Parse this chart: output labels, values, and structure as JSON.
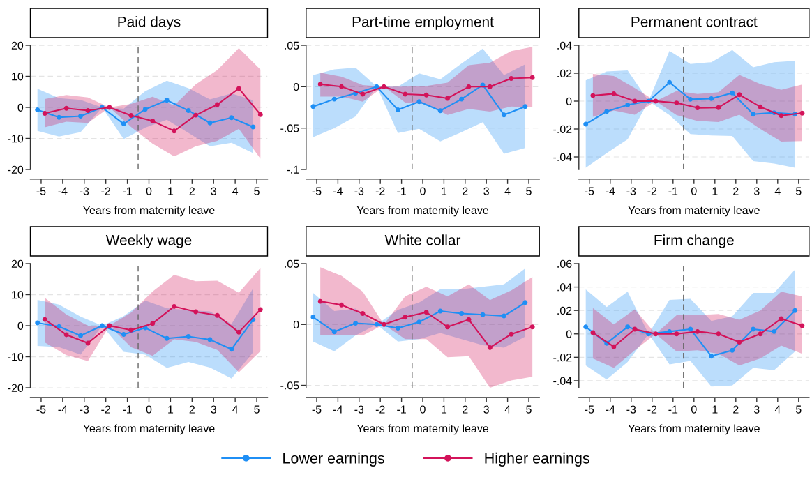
{
  "chart_data": [
    {
      "type": "line",
      "title": "Paid days",
      "xlabel": "Years from maternity leave",
      "xlim": [
        -5.5,
        5.5
      ],
      "xticks": [
        -5,
        -4,
        -3,
        -2,
        -1,
        0,
        1,
        2,
        3,
        4,
        5
      ],
      "ylim": [
        -20,
        20
      ],
      "yticks": [
        20,
        10,
        0,
        -10,
        -20
      ],
      "grid": "y",
      "marker": "circle",
      "line_style": "solid",
      "legend": "bottom",
      "ref_lines": [
        {
          "axis": "x",
          "value": -0.5,
          "color": "#666666",
          "line_style": "dashed"
        }
      ],
      "series": [
        {
          "name": "Lower earnings",
          "color": "#1f8ff5",
          "x": [
            -5.17,
            -4.17,
            -3.17,
            -2.17,
            -1.17,
            -0.17,
            0.83,
            1.83,
            2.83,
            3.83,
            4.83
          ],
          "values": [
            -0.8,
            -3.2,
            -2.8,
            0,
            -5.3,
            -0.6,
            2.3,
            -1.0,
            -5.0,
            -3.3,
            -6.3
          ],
          "lower": [
            -7.6,
            -9.4,
            -8.0,
            0,
            -10.2,
            -6.5,
            -4.0,
            -8.2,
            -12.5,
            -11.4,
            -14.7
          ],
          "upper": [
            6.0,
            3.0,
            2.4,
            0,
            -0.4,
            5.2,
            8.6,
            6.2,
            2.6,
            4.5,
            2.3
          ]
        },
        {
          "name": "Higher earnings",
          "color": "#d3135a",
          "x": [
            -4.83,
            -3.83,
            -2.83,
            -1.83,
            -0.83,
            0.17,
            1.17,
            2.17,
            3.17,
            4.17,
            5.17
          ],
          "values": [
            -1.9,
            -0.3,
            -1.0,
            0,
            -2.6,
            -4.4,
            -7.6,
            -2.5,
            0.9,
            6.1,
            -2.3
          ],
          "lower": [
            -6.4,
            -4.6,
            -5.0,
            0,
            -6.3,
            -11.7,
            -15.8,
            -12.5,
            -10.8,
            -6.9,
            -16.5
          ],
          "upper": [
            2.7,
            4.0,
            3.2,
            0,
            1.1,
            3.4,
            0.6,
            7.4,
            12.0,
            19.1,
            12.2
          ]
        }
      ]
    },
    {
      "type": "line",
      "title": "Part-time employment",
      "xlabel": "Years from maternity leave",
      "xlim": [
        -5.5,
        5.5
      ],
      "xticks": [
        -5,
        -4,
        -3,
        -2,
        -1,
        0,
        1,
        2,
        3,
        4,
        5
      ],
      "ylim": [
        -0.1,
        0.05
      ],
      "yticks": [
        {
          "value": 0.05,
          "label": ".05"
        },
        0,
        {
          "value": -0.05,
          "label": "-.05"
        },
        {
          "value": -0.1,
          "label": "-.1"
        }
      ],
      "grid": "y",
      "marker": "circle",
      "line_style": "solid",
      "ref_lines": [
        {
          "axis": "x",
          "value": -0.5,
          "color": "#666666",
          "line_style": "dashed"
        }
      ],
      "series": [
        {
          "name": "Lower earnings",
          "color": "#1f8ff5",
          "x": [
            -5.17,
            -4.17,
            -3.17,
            -2.17,
            -1.17,
            -0.17,
            0.83,
            1.83,
            2.83,
            3.83,
            4.83
          ],
          "values": [
            -0.024,
            -0.015,
            -0.008,
            0,
            -0.028,
            -0.018,
            -0.029,
            -0.015,
            0.002,
            -0.034,
            -0.024
          ],
          "lower": [
            -0.061,
            -0.05,
            -0.036,
            0,
            -0.056,
            -0.051,
            -0.066,
            -0.055,
            -0.043,
            -0.081,
            -0.074
          ],
          "upper": [
            0.014,
            0.021,
            0.023,
            0,
            0,
            0.016,
            0.009,
            0.028,
            0.046,
            0.014,
            0.027
          ]
        },
        {
          "name": "Higher earnings",
          "color": "#d3135a",
          "x": [
            -4.83,
            -3.83,
            -2.83,
            -1.83,
            -0.83,
            0.17,
            1.17,
            2.17,
            3.17,
            4.17,
            5.17
          ],
          "values": [
            0.003,
            0,
            -0.009,
            0,
            -0.009,
            -0.01,
            -0.014,
            0,
            0,
            0.01,
            0.011
          ],
          "lower": [
            -0.012,
            -0.012,
            -0.018,
            0,
            -0.019,
            -0.021,
            -0.034,
            -0.027,
            -0.03,
            -0.024,
            -0.025
          ],
          "upper": [
            0.017,
            0.012,
            0.002,
            0,
            0,
            0.001,
            0.005,
            0.026,
            0.029,
            0.043,
            0.048
          ]
        }
      ]
    },
    {
      "type": "line",
      "title": "Permanent contract",
      "xlabel": "Years from maternity leave",
      "xlim": [
        -5.5,
        5.5
      ],
      "xticks": [
        -5,
        -4,
        -3,
        -2,
        -1,
        0,
        1,
        2,
        3,
        4,
        5
      ],
      "ylim": [
        -0.049,
        0.04
      ],
      "yticks": [
        {
          "value": 0.04,
          "label": ".04"
        },
        {
          "value": 0.02,
          "label": ".02"
        },
        0,
        {
          "value": -0.02,
          "label": "-.02"
        },
        {
          "value": -0.04,
          "label": "-.04"
        }
      ],
      "grid": "y",
      "marker": "circle",
      "line_style": "solid",
      "ref_lines": [
        {
          "axis": "x",
          "value": -0.5,
          "color": "#666666",
          "line_style": "dashed"
        }
      ],
      "series": [
        {
          "name": "Lower earnings",
          "color": "#1f8ff5",
          "x": [
            -5.17,
            -4.17,
            -3.17,
            -2.17,
            -1.17,
            -0.17,
            0.83,
            1.83,
            2.83,
            3.83,
            4.83
          ],
          "values": [
            -0.0165,
            -0.0074,
            -0.0028,
            0,
            0.0134,
            0.0013,
            0.0018,
            0.0059,
            -0.0094,
            -0.0083,
            -0.0094
          ],
          "lower": [
            -0.0477,
            -0.0373,
            -0.0274,
            0,
            -0.01,
            -0.0236,
            -0.0246,
            -0.025,
            -0.043,
            -0.0447,
            -0.0477
          ],
          "upper": [
            0.0149,
            0.0213,
            0.022,
            0,
            0.036,
            0.0266,
            0.0279,
            0.0366,
            0.0243,
            0.0279,
            0.0289
          ]
        },
        {
          "name": "Higher earnings",
          "color": "#d3135a",
          "x": [
            -4.83,
            -3.83,
            -2.83,
            -1.83,
            -0.83,
            0.17,
            1.17,
            2.17,
            3.17,
            4.17,
            5.17
          ],
          "values": [
            0.004,
            0.0053,
            0,
            0,
            -0.0013,
            -0.0048,
            -0.0046,
            0.0046,
            -0.0041,
            -0.0104,
            -0.0086
          ],
          "lower": [
            -0.0112,
            -0.0068,
            -0.0097,
            0,
            -0.01,
            -0.0142,
            -0.015,
            -0.0097,
            -0.02,
            -0.029,
            -0.0286
          ],
          "upper": [
            0.0195,
            0.018,
            0.0094,
            0,
            0.0073,
            0.0051,
            0.0064,
            0.0188,
            0.0122,
            0.0081,
            0.0119
          ]
        }
      ]
    },
    {
      "type": "line",
      "title": "Weekly wage",
      "xlabel": "Years from maternity leave",
      "xlim": [
        -5.5,
        5.5
      ],
      "xticks": [
        -5,
        -4,
        -3,
        -2,
        -1,
        0,
        1,
        2,
        3,
        4,
        5
      ],
      "ylim": [
        -20,
        20
      ],
      "yticks": [
        20,
        10,
        0,
        -10,
        -20
      ],
      "grid": "y",
      "marker": "circle",
      "line_style": "solid",
      "ref_lines": [
        {
          "axis": "x",
          "value": -0.5,
          "color": "#666666",
          "line_style": "dashed"
        }
      ],
      "series": [
        {
          "name": "Lower earnings",
          "color": "#1f8ff5",
          "x": [
            -5.17,
            -4.17,
            -3.17,
            -2.17,
            -1.17,
            -0.17,
            0.83,
            1.83,
            2.83,
            3.83,
            4.83
          ],
          "values": [
            0.9,
            -0.3,
            -3.2,
            0,
            -2.8,
            -0.7,
            -4.1,
            -3.5,
            -4.5,
            -7.6,
            1.9
          ],
          "lower": [
            -6.5,
            -6.9,
            -9.3,
            0,
            -8.4,
            -9.3,
            -13.6,
            -11.7,
            -13.5,
            -17.0,
            -8.6
          ],
          "upper": [
            8.3,
            6.8,
            2.9,
            0,
            3.1,
            8.1,
            5.6,
            5.0,
            4.6,
            0.5,
            12.0
          ]
        },
        {
          "name": "Higher earnings",
          "color": "#d3135a",
          "x": [
            -4.83,
            -3.83,
            -2.83,
            -1.83,
            -0.83,
            0.17,
            1.17,
            2.17,
            3.17,
            4.17,
            5.17
          ],
          "values": [
            2.0,
            -2.9,
            -5.6,
            0,
            -1.4,
            0.7,
            6.2,
            4.5,
            3.3,
            -2.1,
            5.2
          ],
          "lower": [
            -5.4,
            -9.5,
            -11.4,
            0,
            -6.9,
            -9.7,
            -4.4,
            -5.2,
            -7.8,
            -15.0,
            -8.2
          ],
          "upper": [
            9.0,
            3.6,
            0,
            0,
            4.2,
            11.0,
            16.4,
            14.3,
            14.5,
            10.6,
            18.6
          ]
        }
      ]
    },
    {
      "type": "line",
      "title": "White collar",
      "xlabel": "Years from maternity leave",
      "xlim": [
        -5.5,
        5.5
      ],
      "xticks": [
        -5,
        -4,
        -3,
        -2,
        -1,
        0,
        1,
        2,
        3,
        4,
        5
      ],
      "ylim": [
        -0.052,
        0.05
      ],
      "yticks": [
        {
          "value": 0.05,
          "label": ".05"
        },
        0,
        {
          "value": -0.05,
          "label": "-.05"
        }
      ],
      "grid": "y",
      "marker": "circle",
      "line_style": "solid",
      "ref_lines": [
        {
          "axis": "x",
          "value": -0.5,
          "color": "#666666",
          "line_style": "dashed"
        }
      ],
      "series": [
        {
          "name": "Lower earnings",
          "color": "#1f8ff5",
          "x": [
            -5.17,
            -4.17,
            -3.17,
            -2.17,
            -1.17,
            -0.17,
            0.83,
            1.83,
            2.83,
            3.83,
            4.83
          ],
          "values": [
            0.006,
            -0.006,
            0.001,
            0,
            -0.003,
            0.002,
            0.011,
            0.009,
            0.008,
            0.007,
            0.018
          ],
          "lower": [
            -0.014,
            -0.022,
            -0.009,
            0,
            -0.014,
            -0.012,
            -0.007,
            -0.012,
            -0.017,
            -0.019,
            -0.01
          ],
          "upper": [
            0.026,
            0.011,
            0.013,
            0,
            0.012,
            0.018,
            0.029,
            0.029,
            0.031,
            0.033,
            0.046
          ]
        },
        {
          "name": "Higher earnings",
          "color": "#d3135a",
          "x": [
            -4.83,
            -3.83,
            -2.83,
            -1.83,
            -0.83,
            0.17,
            1.17,
            2.17,
            3.17,
            4.17,
            5.17
          ],
          "values": [
            0.019,
            0.016,
            0.009,
            0,
            0.006,
            0.01,
            -0.002,
            0.004,
            -0.019,
            -0.008,
            -0.002
          ],
          "lower": [
            -0.009,
            -0.009,
            -0.009,
            0,
            -0.012,
            -0.012,
            -0.027,
            -0.026,
            -0.052,
            -0.046,
            -0.043
          ],
          "upper": [
            0.047,
            0.04,
            0.027,
            0,
            0.023,
            0.031,
            0.023,
            0.033,
            0.02,
            0.028,
            0.039
          ]
        }
      ]
    },
    {
      "type": "line",
      "title": "Firm change",
      "xlabel": "Years from maternity leave",
      "xlim": [
        -5.5,
        5.5
      ],
      "xticks": [
        -5,
        -4,
        -3,
        -2,
        -1,
        0,
        1,
        2,
        3,
        4,
        5
      ],
      "ylim": [
        -0.046,
        0.06
      ],
      "yticks": [
        {
          "value": 0.06,
          "label": ".06"
        },
        {
          "value": 0.04,
          "label": ".04"
        },
        {
          "value": 0.02,
          "label": ".02"
        },
        0,
        {
          "value": -0.02,
          "label": "-.02"
        },
        {
          "value": -0.04,
          "label": "-.04"
        }
      ],
      "grid": "y",
      "marker": "circle",
      "line_style": "solid",
      "ref_lines": [
        {
          "axis": "x",
          "value": -0.5,
          "color": "#666666",
          "line_style": "dashed"
        }
      ],
      "series": [
        {
          "name": "Lower earnings",
          "color": "#1f8ff5",
          "x": [
            -5.17,
            -4.17,
            -3.17,
            -2.17,
            -1.17,
            -0.17,
            0.83,
            1.83,
            2.83,
            3.83,
            4.83
          ],
          "values": [
            0.006,
            -0.008,
            0.006,
            0,
            0.002,
            0.004,
            -0.019,
            -0.014,
            0.004,
            0.002,
            0.02
          ],
          "lower": [
            -0.027,
            -0.039,
            -0.024,
            0,
            -0.026,
            -0.023,
            -0.045,
            -0.044,
            -0.029,
            -0.031,
            -0.015
          ],
          "upper": [
            0.038,
            0.023,
            0.036,
            0,
            0.029,
            0.03,
            0.011,
            0.015,
            0.035,
            0.035,
            0.055
          ]
        },
        {
          "name": "Higher earnings",
          "color": "#d3135a",
          "x": [
            -4.83,
            -3.83,
            -2.83,
            -1.83,
            -0.83,
            0.17,
            1.17,
            2.17,
            3.17,
            4.17,
            5.17
          ],
          "values": [
            0.001,
            -0.011,
            0.004,
            0,
            0,
            0.002,
            0,
            -0.007,
            0,
            0.013,
            0.007
          ],
          "lower": [
            -0.021,
            -0.029,
            -0.014,
            0,
            -0.015,
            -0.014,
            -0.017,
            -0.027,
            -0.021,
            -0.01,
            -0.017
          ],
          "upper": [
            0.022,
            0.008,
            0.021,
            0,
            0.016,
            0.016,
            0.017,
            0.012,
            0.02,
            0.036,
            0.032
          ]
        }
      ]
    }
  ]
}
